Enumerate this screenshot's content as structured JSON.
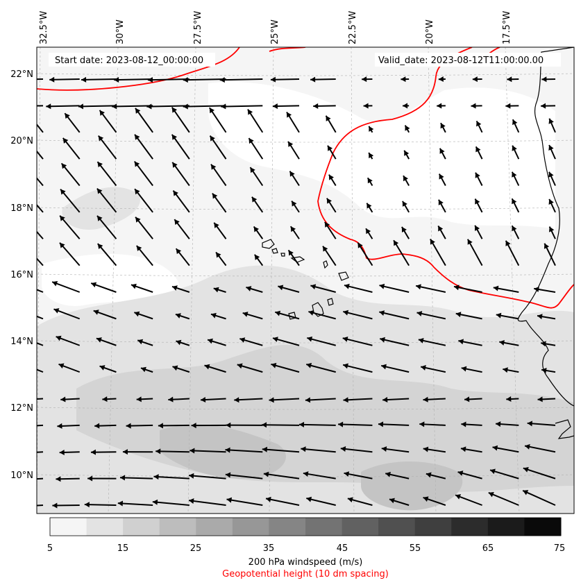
{
  "map": {
    "start_label": "Start date: 2023-08-12_00:00:00",
    "valid_label": "Valid_date: 2023-08-12T11:00:00.00",
    "lon_labels": [
      "32.5°W",
      "30°W",
      "27.5°W",
      "25°W",
      "22.5°W",
      "20°W",
      "17.5°W"
    ],
    "lat_labels": [
      "22°N",
      "20°N",
      "18°N",
      "16°N",
      "14°N",
      "12°N",
      "10°N"
    ],
    "colors": {
      "contour": "#ff0000",
      "arrow": "#000000",
      "coast": "#000000",
      "grid": "#b0b0b0"
    }
  },
  "colorbar": {
    "ticks": [
      "5",
      "15",
      "25",
      "35",
      "45",
      "55",
      "65",
      "75"
    ],
    "title": "200 hPa windspeed (m/s)",
    "subtitle": "Geopotential height (10 dm spacing)",
    "subtitle_color": "#ff0000",
    "bins": [
      5,
      10,
      15,
      20,
      25,
      30,
      35,
      40,
      45,
      50,
      55,
      60,
      65,
      70,
      75
    ],
    "colors": [
      "#f5f5f5",
      "#e3e3e3",
      "#d0d0d0",
      "#bdbdbd",
      "#aaaaaa",
      "#979797",
      "#858585",
      "#737373",
      "#616161",
      "#505050",
      "#3f3f3f",
      "#2c2c2c",
      "#1b1b1b",
      "#0a0a0a"
    ]
  }
}
